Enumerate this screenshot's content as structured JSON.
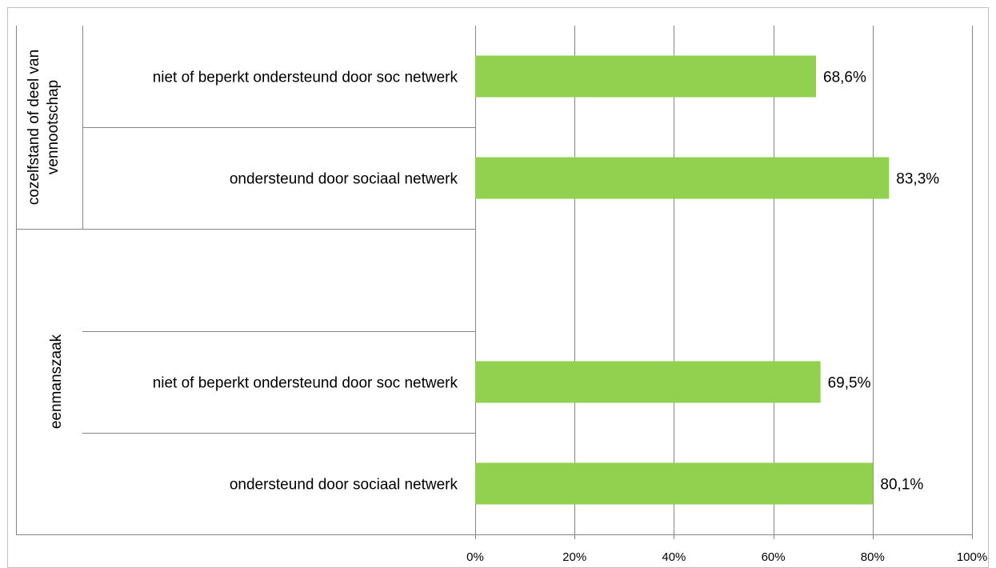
{
  "chart_data": {
    "type": "bar",
    "orientation": "horizontal",
    "groups": [
      {
        "label_lines": [
          "cozelfstand of deel van",
          "vennootschap"
        ],
        "categories": [
          "niet of beperkt ondersteund door soc netwerk",
          "ondersteund door sociaal netwerk"
        ],
        "values": [
          68.6,
          83.3
        ],
        "value_labels": [
          "68,6%",
          "83,3%"
        ]
      },
      {
        "label_lines": [
          "eenmanszaak"
        ],
        "categories": [
          "niet of beperkt ondersteund door soc netwerk",
          "ondersteund door sociaal netwerk"
        ],
        "values": [
          69.5,
          80.1
        ],
        "value_labels": [
          "69,5%",
          "80,1%"
        ]
      }
    ],
    "xlim": [
      0,
      100
    ],
    "x_ticks": [
      0,
      20,
      40,
      60,
      80,
      100
    ],
    "x_tick_labels": [
      "0%",
      "20%",
      "40%",
      "60%",
      "80%",
      "100%"
    ],
    "grid": "vertical",
    "legend": "none",
    "bar_color": "#92d050",
    "grid_color": "#868686",
    "axis_color": "#868686"
  }
}
